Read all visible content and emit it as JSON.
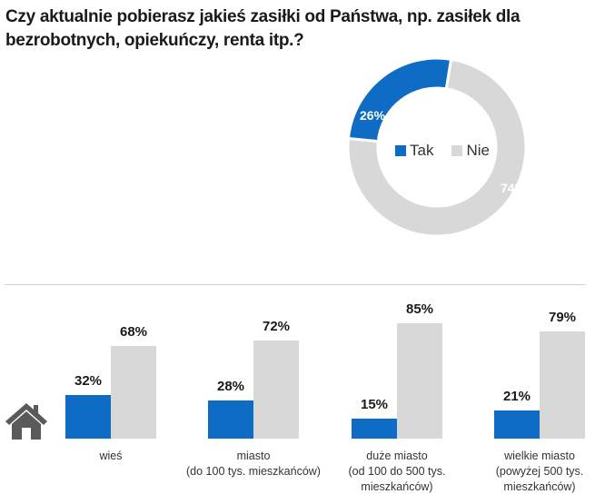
{
  "title": "Czy aktualnie pobierasz jakieś zasiłki od Państwa, np.  zasiłek dla bezrobotnych, opiekuńczy, renta itp.?",
  "colors": {
    "tak": "#0f6cc4",
    "nie": "#d8d8d8",
    "icon": "#5a5a5a"
  },
  "legend": [
    {
      "label": "Tak",
      "color": "#0f6cc4"
    },
    {
      "label": "Nie",
      "color": "#d8d8d8"
    }
  ],
  "donut": {
    "tak_label": "26%",
    "nie_label": "74%"
  },
  "bars": {
    "categories": [
      {
        "line1": "wieś",
        "line2": "",
        "line3": "",
        "tak": "32%",
        "nie": "68%"
      },
      {
        "line1": "miasto",
        "line2": "(do 100 tys. mieszkańców)",
        "line3": "",
        "tak": "28%",
        "nie": "72%"
      },
      {
        "line1": "duże miasto",
        "line2": "(od 100 do 500 tys.",
        "line3": "mieszkańców)",
        "tak": "15%",
        "nie": "85%"
      },
      {
        "line1": "wielkie miasto",
        "line2": "(powyżej 500 tys.",
        "line3": "mieszkańców)",
        "tak": "21%",
        "nie": "79%"
      }
    ]
  },
  "chart_data": [
    {
      "type": "pie",
      "variant": "donut",
      "title": "Czy aktualnie pobierasz jakieś zasiłki od Państwa, np. zasiłek dla bezrobotnych, opiekuńczy, renta itp.?",
      "categories": [
        "Tak",
        "Nie"
      ],
      "values": [
        26,
        74
      ],
      "legend_position": "center"
    },
    {
      "type": "bar",
      "title": "",
      "categories": [
        "wieś",
        "miasto (do 100 tys. mieszkańców)",
        "duże miasto (od 100 do 500 tys. mieszkańców)",
        "wielkie miasto (powyżej 500 tys. mieszkańców)"
      ],
      "series": [
        {
          "name": "Tak",
          "values": [
            32,
            28,
            15,
            21
          ]
        },
        {
          "name": "Nie",
          "values": [
            68,
            72,
            85,
            79
          ]
        }
      ],
      "xlabel": "",
      "ylabel": "",
      "ylim": [
        0,
        100
      ],
      "grid": false
    }
  ]
}
